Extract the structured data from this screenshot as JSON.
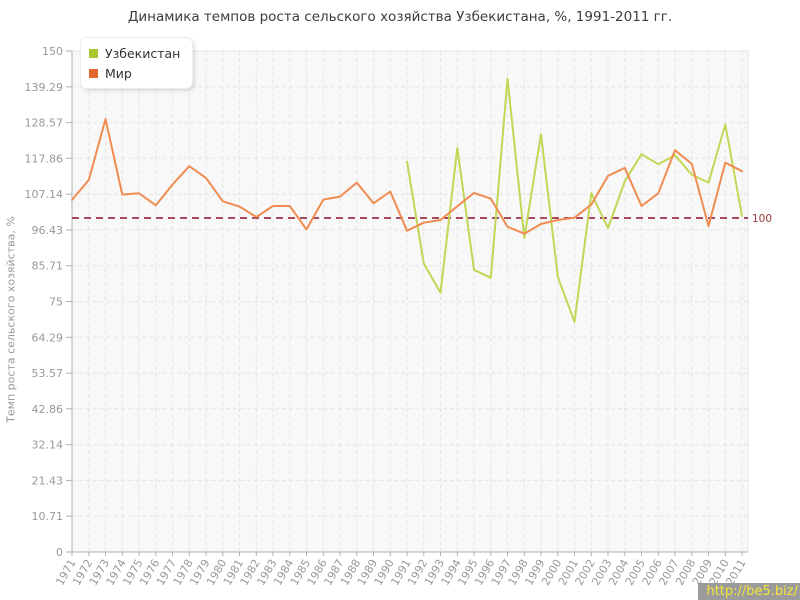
{
  "page": {
    "watermark": "http://be5.biz/"
  },
  "chart_data": {
    "type": "line",
    "title": "Динамика темпов роста сельского хозяйства Узбекистана, %, 1991-2011 гг.",
    "xlabel": "",
    "ylabel": "Темп роста сельского хозяйства, %",
    "ylim": [
      0,
      150
    ],
    "grid": true,
    "legend_position": "top-left",
    "y_ticks": [
      "0",
      "10.71",
      "21.43",
      "32.14",
      "42.86",
      "53.57",
      "64.29",
      "75",
      "85.71",
      "96.43",
      "107.14",
      "117.86",
      "128.57",
      "139.29",
      "150"
    ],
    "x": [
      "1971",
      "1972",
      "1973",
      "1974",
      "1975",
      "1976",
      "1977",
      "1978",
      "1979",
      "1980",
      "1981",
      "1982",
      "1983",
      "1984",
      "1985",
      "1986",
      "1987",
      "1988",
      "1989",
      "1990",
      "1991",
      "1992",
      "1993",
      "1994",
      "1995",
      "1996",
      "1997",
      "1998",
      "1999",
      "2000",
      "2001",
      "2002",
      "2003",
      "2004",
      "2005",
      "2006",
      "2007",
      "2008",
      "2009",
      "2010",
      "2011"
    ],
    "series": [
      {
        "name": "Узбекистан",
        "color": "#c3d655",
        "marker_color": "#a6c82d",
        "values": [
          null,
          null,
          null,
          null,
          null,
          null,
          null,
          null,
          null,
          null,
          null,
          null,
          null,
          null,
          null,
          null,
          null,
          null,
          null,
          null,
          116.9,
          86.4,
          77.6,
          121.0,
          84.5,
          82.1,
          141.7,
          94.0,
          125.1,
          82.4,
          68.9,
          107.4,
          97.0,
          111.0,
          119.1,
          116.1,
          118.8,
          112.9,
          110.6,
          128.0,
          100.6
        ]
      },
      {
        "name": "Мир",
        "color": "#f08c52",
        "marker_color": "#e2662b",
        "values": [
          105.4,
          111.4,
          129.6,
          107.0,
          107.4,
          103.8,
          110.0,
          115.5,
          112.0,
          105.0,
          103.4,
          100.3,
          103.6,
          103.6,
          96.6,
          105.5,
          106.4,
          110.6,
          104.4,
          107.9,
          96.2,
          98.6,
          99.4,
          103.5,
          107.5,
          105.8,
          97.4,
          95.3,
          98.2,
          99.4,
          100.1,
          104.0,
          112.6,
          115.0,
          103.6,
          107.4,
          120.3,
          116.2,
          97.6,
          116.6,
          114.0
        ]
      }
    ],
    "ref_line": {
      "value": 100,
      "label": "100",
      "line_color": "#a84a5e",
      "label_color": "#9c3a3a"
    }
  }
}
